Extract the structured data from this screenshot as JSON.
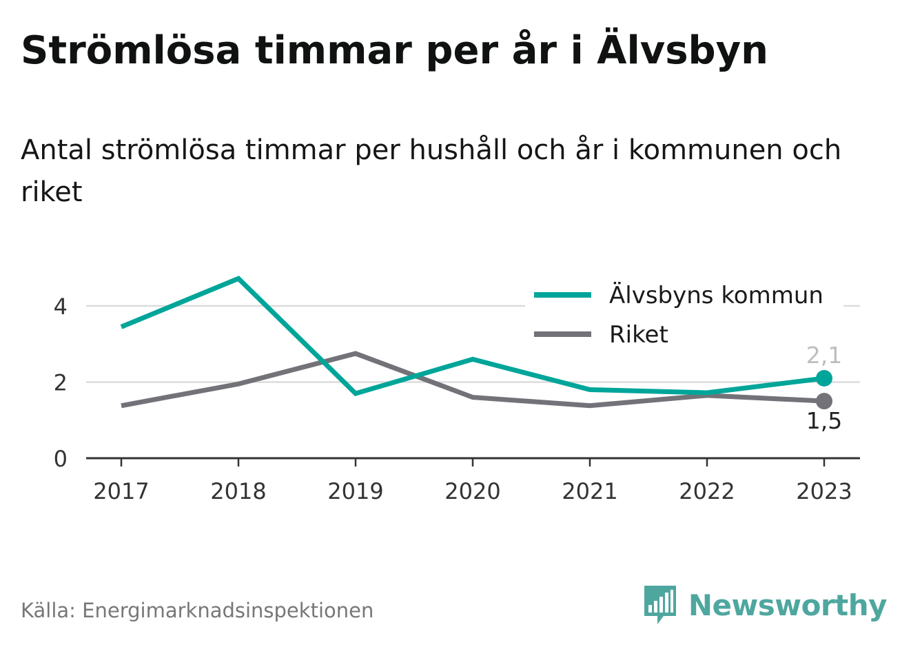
{
  "header": {
    "title": "Strömlösa timmar per år i Älvsbyn",
    "subtitle": "Antal strömlösa timmar per hushåll och år i kommunen och riket"
  },
  "footer": {
    "source": "Källa: Energimarknadsinspektionen",
    "brand": "Newsworthy"
  },
  "colors": {
    "series_kommun": "#00a59a",
    "series_riket": "#737278",
    "grid": "#dcdcdc",
    "axis": "#333333",
    "brand": "#4ea79f"
  },
  "chart_data": {
    "type": "line",
    "x": [
      "2017",
      "2018",
      "2019",
      "2020",
      "2021",
      "2022",
      "2023"
    ],
    "y_ticks": [
      "0",
      "2",
      "4"
    ],
    "ylim": [
      0,
      4.7
    ],
    "grid": true,
    "legend_position": "top-right",
    "series": [
      {
        "name": "Älvsbyns kommun",
        "values": [
          3.45,
          4.72,
          1.7,
          2.6,
          1.8,
          1.72,
          2.1
        ],
        "end_label": "2,1",
        "color": "#00a59a"
      },
      {
        "name": "Riket",
        "values": [
          1.38,
          1.95,
          2.75,
          1.6,
          1.38,
          1.65,
          1.5
        ],
        "end_label": "1,5",
        "color": "#737278"
      }
    ]
  },
  "icons": {
    "brand": "newsworthy-chat-bars-icon"
  }
}
